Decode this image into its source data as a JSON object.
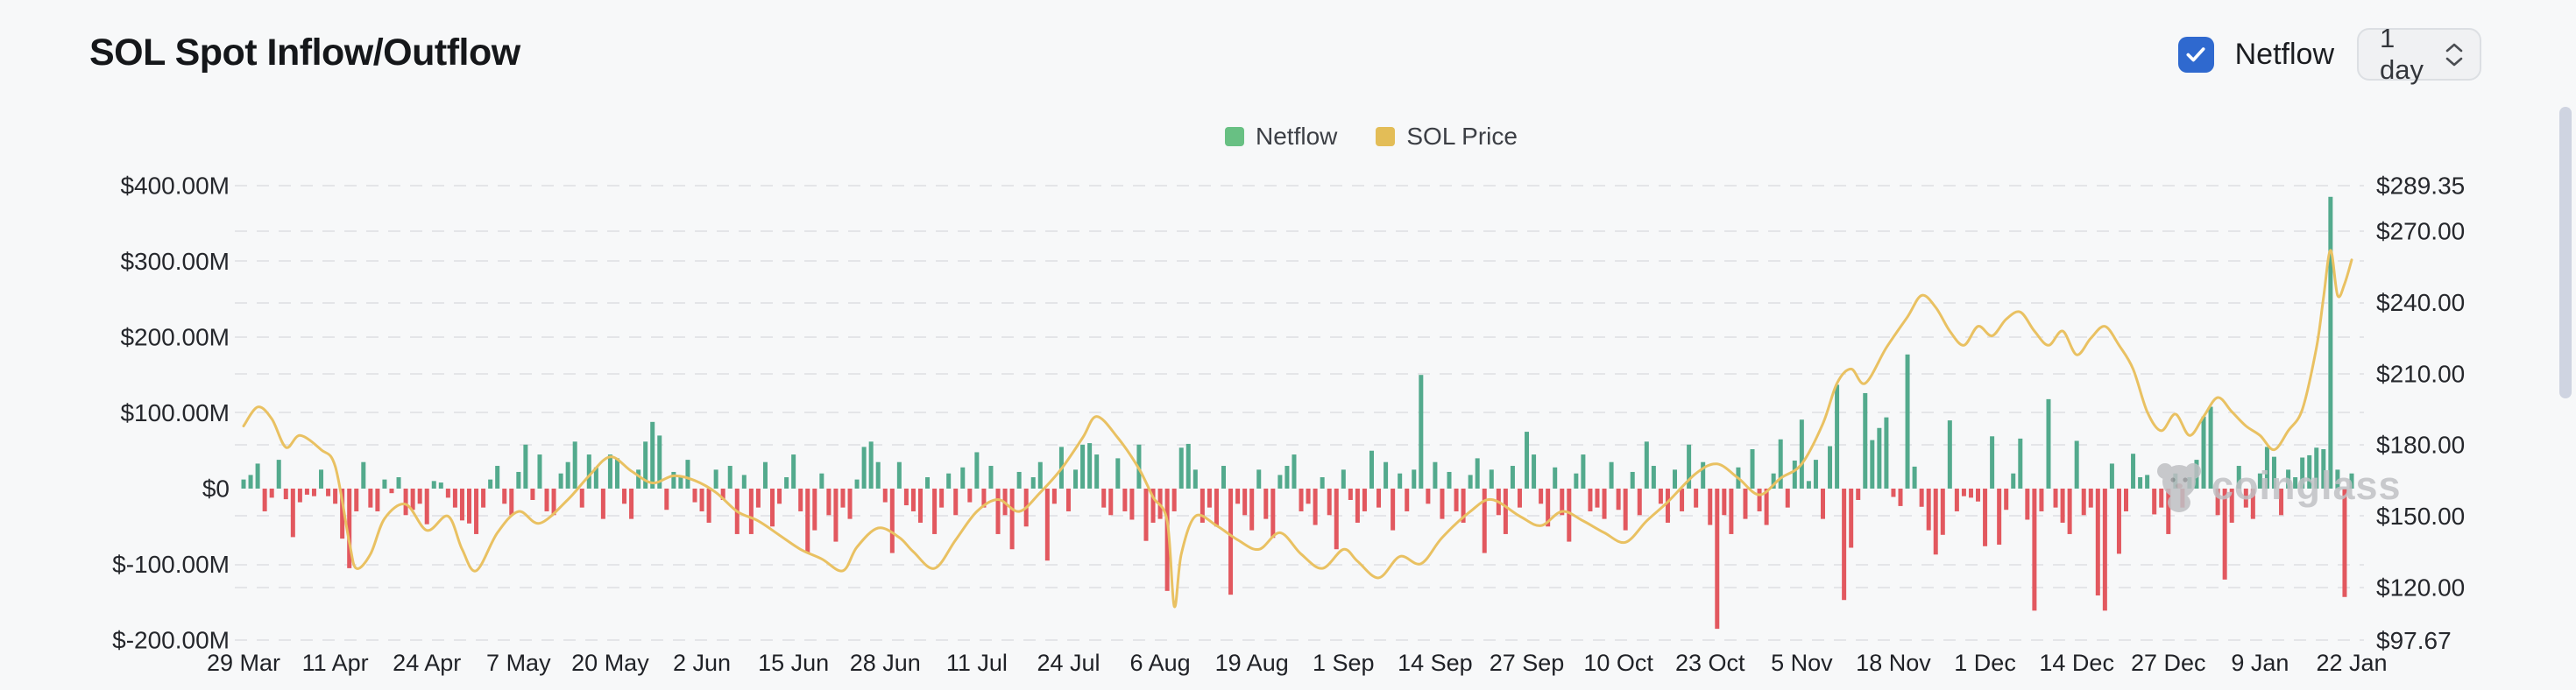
{
  "header": {
    "title": "SOL Spot Inflow/Outflow",
    "netflow_toggle": {
      "label": "Netflow",
      "checked": true
    },
    "interval_select": {
      "value": "1 day"
    }
  },
  "legend": [
    {
      "label": "Netflow",
      "color": "#68c083"
    },
    {
      "label": "SOL Price",
      "color": "#e3bd57"
    }
  ],
  "watermark": {
    "text": "coinglass"
  },
  "colors": {
    "background": "#f7f8f9",
    "bar_positive": "#53aa8d",
    "bar_negative": "#e2585f",
    "price_line": "#e9c162",
    "grid": "#e4e5e8",
    "axis_text": "#25272c",
    "tick_text": "#202227",
    "watermark": "#c0c1c5",
    "checkbox_blue": "#2f69cf",
    "scrollbar": "#cfd4e1"
  },
  "chart_data": {
    "type": "bar+line dual-axis time series",
    "x_ticks": {
      "labels": [
        "29 Mar",
        "11 Apr",
        "24 Apr",
        "7 May",
        "20 May",
        "2 Jun",
        "15 Jun",
        "28 Jun",
        "11 Jul",
        "24 Jul",
        "6 Aug",
        "19 Aug",
        "1 Sep",
        "14 Sep",
        "27 Sep",
        "10 Oct",
        "23 Oct",
        "5 Nov",
        "18 Nov",
        "1 Dec",
        "14 Dec",
        "27 Dec",
        "9 Jan",
        "22 Jan"
      ],
      "day_index": [
        0,
        13,
        26,
        39,
        52,
        65,
        78,
        91,
        104,
        117,
        130,
        143,
        156,
        169,
        182,
        195,
        208,
        221,
        234,
        247,
        260,
        273,
        286,
        299
      ]
    },
    "left_axis": {
      "title": "Netflow (USD)",
      "unit": "millions USD",
      "ticks": [
        {
          "label": "$400.00M",
          "value": 400
        },
        {
          "label": "$300.00M",
          "value": 300
        },
        {
          "label": "$200.00M",
          "value": 200
        },
        {
          "label": "$100.00M",
          "value": 100
        },
        {
          "label": "$0",
          "value": 0
        },
        {
          "label": "$-100.00M",
          "value": -100
        },
        {
          "label": "$-200.00M",
          "value": -200
        }
      ],
      "range": [
        -200,
        400
      ]
    },
    "right_axis": {
      "title": "SOL Price (USD)",
      "ticks": [
        {
          "label": "$289.35",
          "value": 289.35
        },
        {
          "label": "$270.00",
          "value": 270
        },
        {
          "label": "$240.00",
          "value": 240
        },
        {
          "label": "$210.00",
          "value": 210
        },
        {
          "label": "$180.00",
          "value": 180
        },
        {
          "label": "$150.00",
          "value": 150
        },
        {
          "label": "$120.00",
          "value": 120
        },
        {
          "label": "$97.67",
          "value": 97.67
        }
      ],
      "range": [
        97.67,
        289.35
      ]
    },
    "grid": {
      "style": "dashed",
      "on": true
    },
    "legend_position": "top-center",
    "series": [
      {
        "name": "Netflow",
        "type": "bar",
        "unit": "millions USD",
        "days_span": 300,
        "values": [
          12,
          18,
          33,
          -30,
          -12,
          38,
          -14,
          -64,
          -18,
          -8,
          -10,
          25,
          -10,
          -20,
          -66,
          -105,
          -30,
          35,
          -25,
          -30,
          12,
          -6,
          15,
          -35,
          -28,
          -20,
          -47,
          10,
          8,
          -12,
          -25,
          -42,
          -46,
          -60,
          -25,
          12,
          30,
          -20,
          -35,
          22,
          58,
          -15,
          45,
          -30,
          -35,
          20,
          35,
          62,
          -25,
          45,
          28,
          -40,
          45,
          40,
          -20,
          -40,
          25,
          62,
          88,
          70,
          -28,
          22,
          15,
          38,
          -18,
          -30,
          -45,
          25,
          -15,
          30,
          -60,
          18,
          -60,
          -25,
          35,
          -50,
          -20,
          15,
          45,
          -30,
          -85,
          -55,
          20,
          -35,
          -70,
          -25,
          -40,
          12,
          55,
          62,
          35,
          -18,
          -85,
          35,
          -22,
          -30,
          -45,
          15,
          -60,
          -25,
          20,
          -35,
          28,
          -18,
          48,
          -25,
          30,
          -60,
          -35,
          -80,
          22,
          -50,
          15,
          35,
          -95,
          -20,
          55,
          -30,
          25,
          58,
          60,
          45,
          -25,
          -35,
          40,
          -30,
          -41,
          58,
          -69,
          -45,
          -40,
          -135,
          -30,
          54,
          59,
          25,
          -45,
          -25,
          -50,
          30,
          -140,
          -20,
          -35,
          -55,
          25,
          -40,
          -65,
          18,
          30,
          45,
          -30,
          -20,
          -48,
          15,
          -35,
          -80,
          25,
          -15,
          -45,
          -30,
          50,
          -25,
          35,
          -55,
          20,
          -30,
          25,
          150,
          -20,
          35,
          -40,
          22,
          -30,
          -45,
          18,
          40,
          -85,
          25,
          -35,
          -60,
          30,
          -25,
          75,
          45,
          -20,
          -50,
          28,
          -35,
          -70,
          20,
          45,
          -30,
          -25,
          -40,
          35,
          -28,
          -55,
          22,
          -35,
          62,
          30,
          -20,
          -45,
          25,
          -30,
          58,
          -25,
          35,
          -48,
          -185,
          -35,
          -60,
          28,
          -40,
          52,
          -30,
          -48,
          20,
          65,
          -25,
          37,
          91,
          10,
          38,
          -40,
          56,
          137,
          -147,
          -78,
          -15,
          126,
          64,
          80,
          94,
          -11,
          -23,
          177,
          29,
          -24,
          -55,
          -87,
          -61,
          90,
          -30,
          -10,
          -12,
          -17,
          -76,
          69,
          -74,
          -28,
          20,
          66,
          -41,
          -161,
          -30,
          118,
          -25,
          -45,
          -60,
          63,
          -35,
          -25,
          -141,
          -161,
          33,
          -86,
          -30,
          46,
          15,
          18,
          -34,
          -25,
          -60,
          20,
          -25,
          15,
          38,
          95,
          108,
          -35,
          -120,
          -45,
          30,
          -25,
          -40,
          20,
          55,
          42,
          -35,
          25,
          15,
          41,
          44,
          54,
          52,
          385,
          25,
          -143,
          20
        ]
      },
      {
        "name": "SOL Price",
        "type": "line",
        "unit": "USD",
        "points_day_price": [
          [
            0,
            188
          ],
          [
            2,
            196
          ],
          [
            4,
            191
          ],
          [
            6,
            179
          ],
          [
            8,
            184
          ],
          [
            11,
            178
          ],
          [
            13,
            171
          ],
          [
            15,
            139
          ],
          [
            16,
            128
          ],
          [
            18,
            134
          ],
          [
            20,
            149
          ],
          [
            23,
            155
          ],
          [
            26,
            144
          ],
          [
            29,
            150
          ],
          [
            31,
            136
          ],
          [
            33,
            127
          ],
          [
            36,
            143
          ],
          [
            39,
            152
          ],
          [
            42,
            147
          ],
          [
            46,
            157
          ],
          [
            49,
            167
          ],
          [
            52,
            175
          ],
          [
            55,
            169
          ],
          [
            58,
            164
          ],
          [
            61,
            167
          ],
          [
            64,
            165
          ],
          [
            67,
            160
          ],
          [
            70,
            152
          ],
          [
            73,
            148
          ],
          [
            76,
            142
          ],
          [
            79,
            136
          ],
          [
            82,
            132
          ],
          [
            85,
            127
          ],
          [
            87,
            137
          ],
          [
            90,
            145
          ],
          [
            93,
            141
          ],
          [
            95,
            135
          ],
          [
            98,
            128
          ],
          [
            101,
            140
          ],
          [
            104,
            152
          ],
          [
            107,
            157
          ],
          [
            110,
            152
          ],
          [
            113,
            160
          ],
          [
            116,
            170
          ],
          [
            119,
            183
          ],
          [
            121,
            192
          ],
          [
            124,
            183
          ],
          [
            127,
            170
          ],
          [
            129,
            158
          ],
          [
            131,
            148
          ],
          [
            132,
            112
          ],
          [
            133,
            134
          ],
          [
            135,
            150
          ],
          [
            138,
            146
          ],
          [
            141,
            140
          ],
          [
            144,
            136
          ],
          [
            147,
            143
          ],
          [
            150,
            134
          ],
          [
            153,
            128
          ],
          [
            156,
            136
          ],
          [
            158,
            131
          ],
          [
            161,
            124
          ],
          [
            164,
            133
          ],
          [
            167,
            130
          ],
          [
            170,
            141
          ],
          [
            174,
            152
          ],
          [
            177,
            157
          ],
          [
            181,
            150
          ],
          [
            184,
            146
          ],
          [
            187,
            152
          ],
          [
            190,
            148
          ],
          [
            193,
            143
          ],
          [
            196,
            139
          ],
          [
            199,
            148
          ],
          [
            202,
            156
          ],
          [
            206,
            168
          ],
          [
            209,
            172
          ],
          [
            212,
            166
          ],
          [
            215,
            159
          ],
          [
            218,
            166
          ],
          [
            221,
            172
          ],
          [
            224,
            189
          ],
          [
            226,
            206
          ],
          [
            228,
            212
          ],
          [
            230,
            206
          ],
          [
            233,
            221
          ],
          [
            236,
            234
          ],
          [
            238,
            243
          ],
          [
            240,
            238
          ],
          [
            242,
            228
          ],
          [
            244,
            222
          ],
          [
            246,
            230
          ],
          [
            248,
            226
          ],
          [
            250,
            233
          ],
          [
            252,
            236
          ],
          [
            254,
            228
          ],
          [
            256,
            222
          ],
          [
            258,
            228
          ],
          [
            260,
            218
          ],
          [
            262,
            225
          ],
          [
            264,
            230
          ],
          [
            266,
            222
          ],
          [
            268,
            212
          ],
          [
            270,
            194
          ],
          [
            272,
            186
          ],
          [
            274,
            193
          ],
          [
            276,
            184
          ],
          [
            278,
            192
          ],
          [
            280,
            200
          ],
          [
            282,
            194
          ],
          [
            284,
            188
          ],
          [
            286,
            184
          ],
          [
            288,
            178
          ],
          [
            290,
            186
          ],
          [
            292,
            195
          ],
          [
            294,
            221
          ],
          [
            295,
            242
          ],
          [
            296,
            262
          ],
          [
            297,
            243
          ],
          [
            298,
            248
          ],
          [
            299,
            258
          ]
        ]
      }
    ]
  }
}
